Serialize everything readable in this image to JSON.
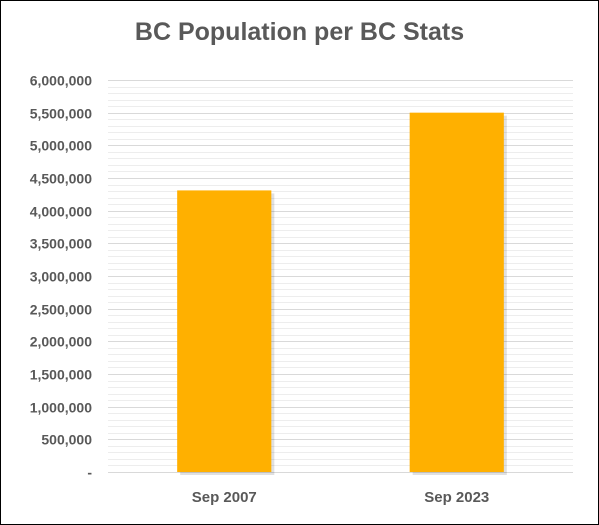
{
  "chart_data": {
    "type": "bar",
    "title": "BC Population per BC Stats",
    "xlabel": "",
    "ylabel": "",
    "categories": [
      "Sep 2007",
      "Sep 2023"
    ],
    "values": [
      4310000,
      5500000
    ],
    "ylim": [
      0,
      6000000
    ],
    "y_ticks": [
      0,
      500000,
      1000000,
      1500000,
      2000000,
      2500000,
      3000000,
      3500000,
      4000000,
      4500000,
      5000000,
      5500000,
      6000000
    ],
    "y_tick_labels": [
      "-",
      "500,000",
      "1,000,000",
      "1,500,000",
      "2,000,000",
      "2,500,000",
      "3,000,000",
      "3,500,000",
      "4,000,000",
      "4,500,000",
      "5,000,000",
      "5,500,000",
      "6,000,000"
    ],
    "minor_step": 100000,
    "grid": true,
    "legend": "none",
    "colors": {
      "bar": "#FFB000",
      "text": "#595959",
      "major_grid": "#D9D9D9",
      "minor_grid": "#EDEDED"
    }
  }
}
